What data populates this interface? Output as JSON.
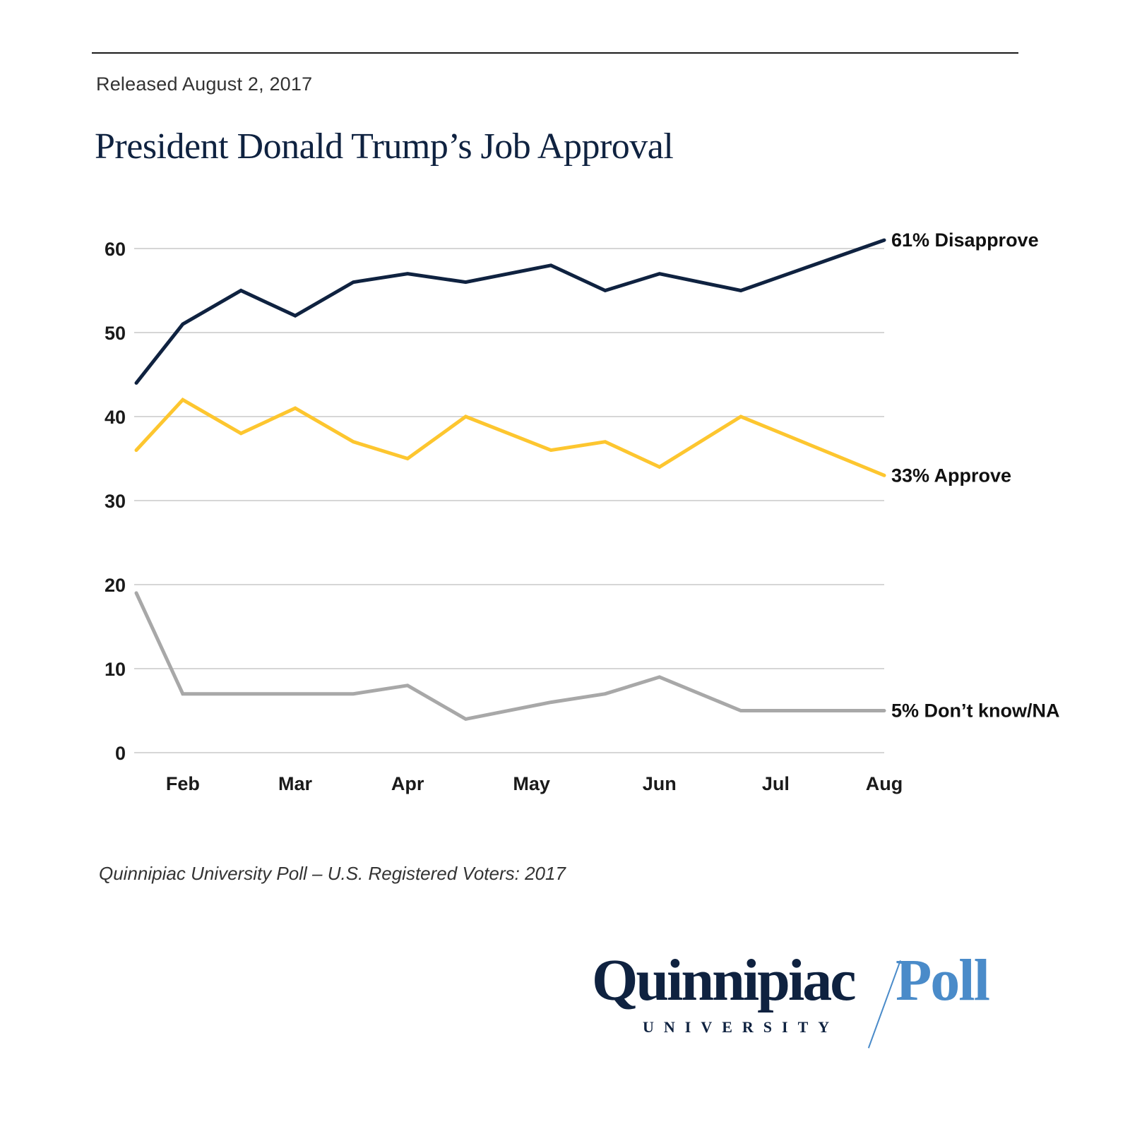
{
  "header": {
    "released": "Released August 2, 2017",
    "title": "President Donald Trump’s Job Approval"
  },
  "footer": {
    "source": "Quinnipiac University Poll – U.S. Registered Voters: 2017"
  },
  "logo": {
    "name": "Quinnipiac",
    "sub": "UNIVERSITY",
    "poll": "Poll"
  },
  "chart_data": {
    "type": "line",
    "title": "President Donald Trump’s Job Approval",
    "xlabel": "",
    "ylabel": "",
    "x_unit": "day of year 2017",
    "x": [
      20,
      32,
      47,
      61,
      76,
      90,
      105,
      127,
      141,
      155,
      176,
      213
    ],
    "xlim": [
      20,
      213
    ],
    "ylim": [
      0,
      62
    ],
    "yticks": [
      0,
      10,
      20,
      30,
      40,
      50,
      60
    ],
    "xticks": [
      {
        "label": "Feb",
        "x": 32
      },
      {
        "label": "Mar",
        "x": 61
      },
      {
        "label": "Apr",
        "x": 90
      },
      {
        "label": "May",
        "x": 122
      },
      {
        "label": "Jun",
        "x": 155
      },
      {
        "label": "Jul",
        "x": 185
      },
      {
        "label": "Aug",
        "x": 213
      }
    ],
    "grid": true,
    "legend": "end-of-line labels",
    "series": [
      {
        "name": "Disapprove",
        "end_label": "61% Disapprove",
        "color": "#0f2240",
        "values": [
          44,
          51,
          55,
          52,
          56,
          57,
          56,
          58,
          55,
          57,
          55,
          61
        ]
      },
      {
        "name": "Approve",
        "end_label": "33% Approve",
        "color": "#fdc62f",
        "values": [
          36,
          42,
          38,
          41,
          37,
          35,
          40,
          36,
          37,
          34,
          40,
          33
        ]
      },
      {
        "name": "Don't know/NA",
        "end_label": "5% Don’t know/NA",
        "color": "#a8a8a8",
        "values": [
          19,
          7,
          7,
          7,
          7,
          8,
          4,
          6,
          7,
          9,
          5,
          5
        ]
      }
    ]
  }
}
